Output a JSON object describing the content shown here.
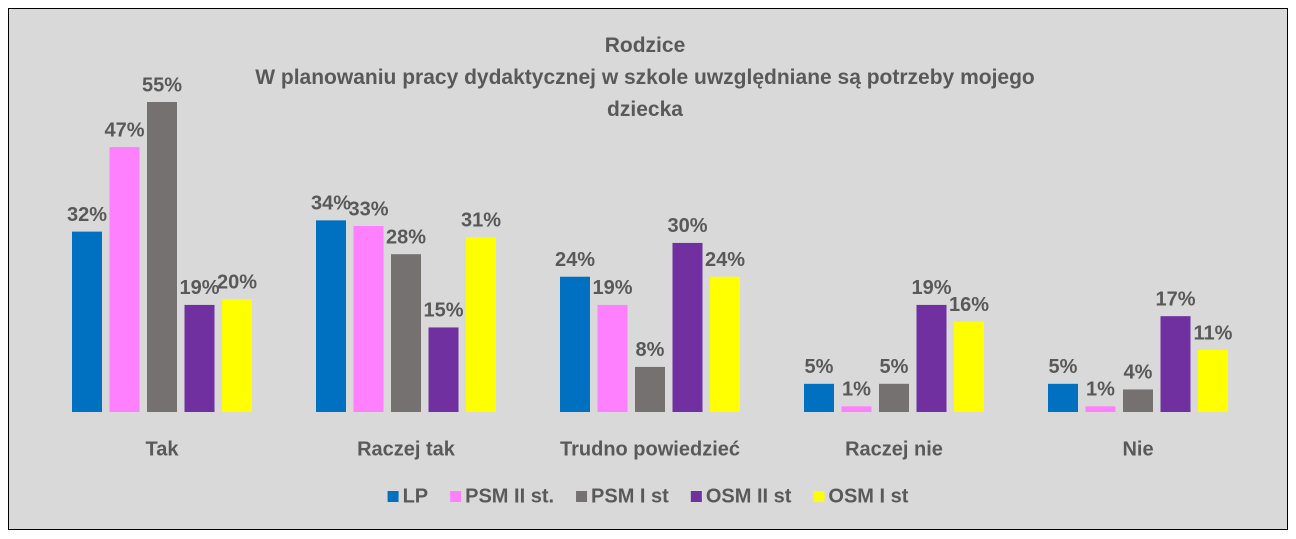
{
  "chart_data": {
    "type": "bar",
    "title": "Rodzice",
    "subtitle": "W planowaniu pracy dydaktycznej w szkole uwzględniane są potrzeby mojego dziecka",
    "categories": [
      "Tak",
      "Raczej tak",
      "Trudno powiedzieć",
      "Raczej nie",
      "Nie"
    ],
    "series": [
      {
        "name": "LP",
        "color": "#0070c0",
        "values": [
          32,
          34,
          24,
          5,
          5
        ],
        "value_labels": [
          "32%",
          "34%",
          "24%",
          "5%",
          "5%"
        ]
      },
      {
        "name": "PSM II st.",
        "color": "#ff80ff",
        "values": [
          47,
          33,
          19,
          1,
          1
        ],
        "value_labels": [
          "47%",
          "33%",
          "19%",
          "1%",
          "1%"
        ]
      },
      {
        "name": "PSM I st",
        "color": "#767171",
        "values": [
          55,
          28,
          8,
          5,
          4
        ],
        "value_labels": [
          "55%",
          "28%",
          "8%",
          "5%",
          "4%"
        ]
      },
      {
        "name": "OSM II st",
        "color": "#7030a0",
        "values": [
          19,
          15,
          30,
          19,
          17
        ],
        "value_labels": [
          "19%",
          "15%",
          "30%",
          "19%",
          "17%"
        ]
      },
      {
        "name": "OSM I st",
        "color": "#ffff00",
        "values": [
          20,
          31,
          24,
          16,
          11
        ],
        "value_labels": [
          "20%",
          "31%",
          "24%",
          "16%",
          "11%"
        ]
      }
    ],
    "legend": "bottom"
  }
}
